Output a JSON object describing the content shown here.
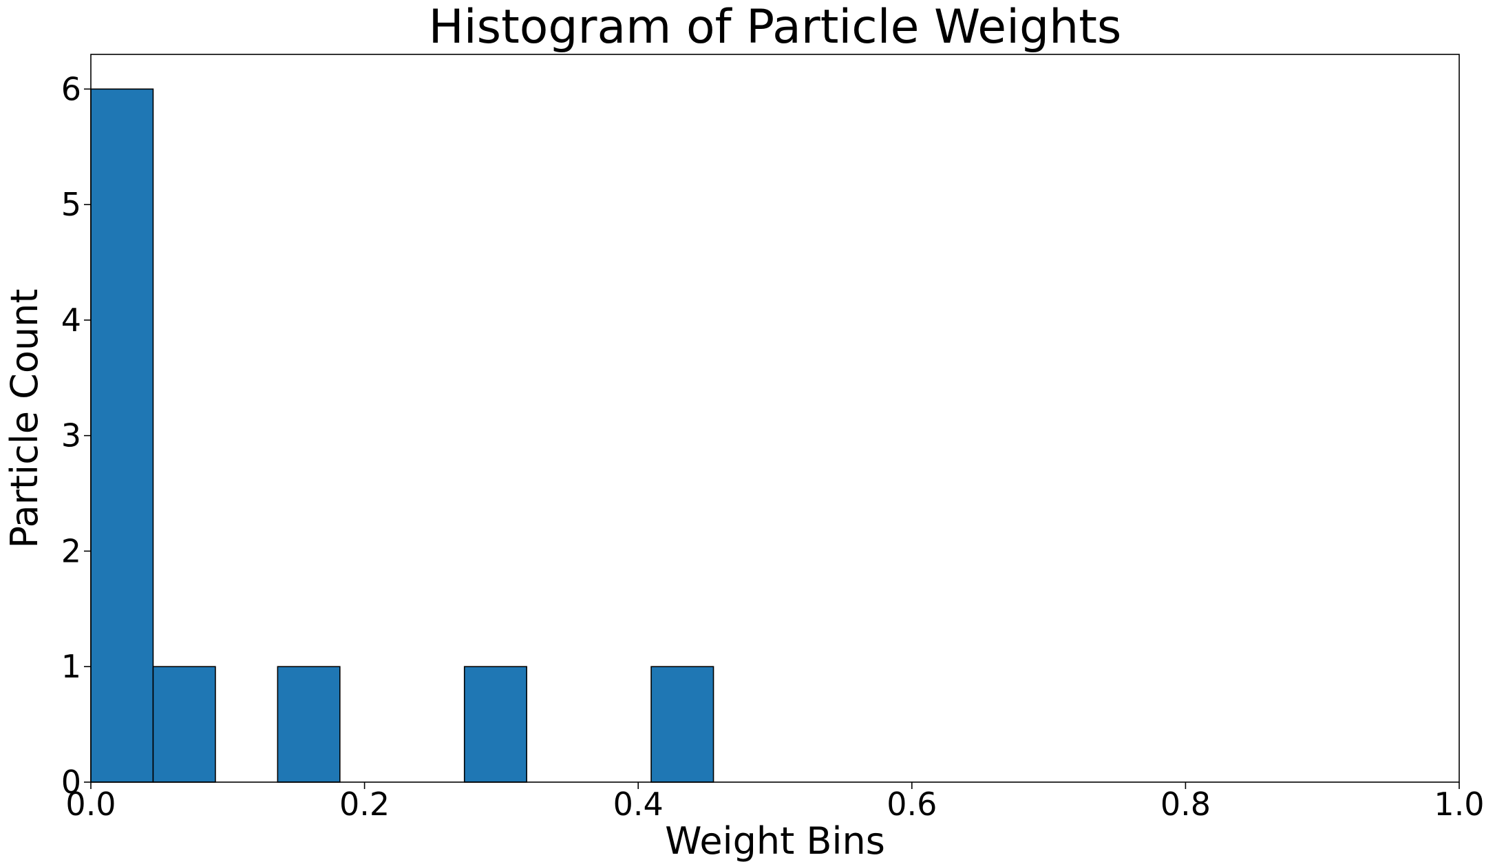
{
  "chart_data": {
    "type": "bar",
    "title": "Histogram of Particle Weights",
    "xlabel": "Weight Bins",
    "ylabel": "Particle Count",
    "xlim": [
      0.0,
      1.0
    ],
    "ylim": [
      0,
      6.3
    ],
    "grid": false,
    "legend": "none",
    "bar_color": "#1f77b4",
    "edge_color": "#000000",
    "x_ticks": [
      0.0,
      0.2,
      0.4,
      0.6,
      0.8,
      1.0
    ],
    "x_tick_labels": [
      "0.0",
      "0.2",
      "0.4",
      "0.6",
      "0.8",
      "1.0"
    ],
    "y_ticks": [
      0,
      1,
      2,
      3,
      4,
      5,
      6
    ],
    "y_tick_labels": [
      "0",
      "1",
      "2",
      "3",
      "4",
      "5",
      "6"
    ],
    "bins": [
      {
        "x0": 0.0,
        "x1": 0.0455,
        "count": 6
      },
      {
        "x0": 0.0455,
        "x1": 0.091,
        "count": 1
      },
      {
        "x0": 0.091,
        "x1": 0.1365,
        "count": 0
      },
      {
        "x0": 0.1365,
        "x1": 0.182,
        "count": 1
      },
      {
        "x0": 0.182,
        "x1": 0.2275,
        "count": 0
      },
      {
        "x0": 0.2275,
        "x1": 0.273,
        "count": 0
      },
      {
        "x0": 0.273,
        "x1": 0.3185,
        "count": 1
      },
      {
        "x0": 0.3185,
        "x1": 0.364,
        "count": 0
      },
      {
        "x0": 0.364,
        "x1": 0.4095,
        "count": 0
      },
      {
        "x0": 0.4095,
        "x1": 0.455,
        "count": 1
      }
    ]
  }
}
